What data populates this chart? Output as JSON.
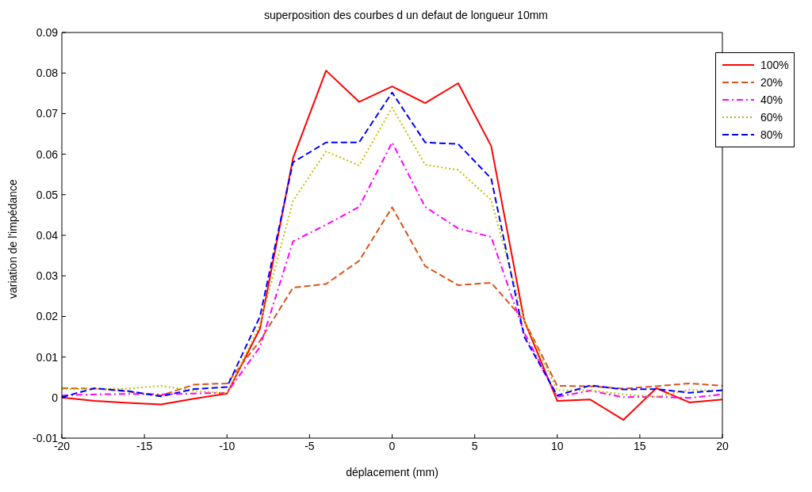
{
  "chart_data": {
    "type": "line",
    "title": "superposition des courbes d un defaut de longueur 10mm",
    "xlabel": "déplacement  (mm)",
    "ylabel": "variation de l'impédance",
    "x": [
      -20,
      -18,
      -16,
      -14,
      -12,
      -10,
      -8,
      -6,
      -4,
      -2,
      0,
      2,
      4,
      6,
      8,
      10,
      12,
      14,
      16,
      18,
      20
    ],
    "series": [
      {
        "name": "100%",
        "color": "#ff0000",
        "line_style": "solid",
        "values": [
          0,
          -0.0008,
          -0.0013,
          -0.0017,
          -0.0003,
          0.001,
          0.017,
          0.059,
          0.0806,
          0.0729,
          0.0767,
          0.0726,
          0.0775,
          0.062,
          0.019,
          -0.0008,
          -0.0005,
          -0.0055,
          0.0023,
          -0.0012,
          -0.0005
        ]
      },
      {
        "name": "20%",
        "color": "#d95319",
        "line_style": "dashed",
        "values": [
          0.0023,
          0.0022,
          0.0015,
          0.0005,
          0.0032,
          0.0035,
          0.014,
          0.0271,
          0.028,
          0.0337,
          0.0469,
          0.0324,
          0.0277,
          0.0283,
          0.019,
          0.0029,
          0.0028,
          0.0022,
          0.0028,
          0.0035,
          0.0029
        ]
      },
      {
        "name": "40%",
        "color": "#ff00ff",
        "line_style": "dashdot",
        "values": [
          0.0005,
          0.0008,
          0.0009,
          0.0008,
          0.001,
          0.0012,
          0.0125,
          0.0385,
          0.0426,
          0.047,
          0.0629,
          0.047,
          0.0417,
          0.0396,
          0.016,
          0.0002,
          0.0017,
          0.0001,
          0.0002,
          -0.0001,
          0.0008
        ]
      },
      {
        "name": "60%",
        "color": "#bfbf00",
        "line_style": "dotted",
        "values": [
          0.0021,
          0.0021,
          0.0022,
          0.0029,
          0.0017,
          0.0011,
          0.018,
          0.0485,
          0.0607,
          0.0572,
          0.0715,
          0.0574,
          0.0561,
          0.0487,
          0.019,
          0.0018,
          0.0018,
          0.0008,
          0.0002,
          0.0019,
          0.0017
        ]
      },
      {
        "name": "80%",
        "color": "#0000ff",
        "line_style": "dashed",
        "values": [
          0.0001,
          0.0023,
          0.0016,
          0.0003,
          0.0021,
          0.0026,
          0.02,
          0.058,
          0.0629,
          0.0629,
          0.0752,
          0.0629,
          0.0625,
          0.054,
          0.015,
          0.0005,
          0.003,
          0.002,
          0.0021,
          0.0012,
          0.0018
        ]
      }
    ],
    "xlim": [
      -20,
      20
    ],
    "xticks": [
      -20,
      -15,
      -10,
      -5,
      0,
      5,
      10,
      15,
      20
    ],
    "ylim": [
      -0.01,
      0.09
    ],
    "yticks": [
      -0.01,
      0,
      0.01,
      0.02,
      0.03,
      0.04,
      0.05,
      0.06,
      0.07,
      0.08,
      0.09
    ],
    "grid": false,
    "legend": "top right",
    "marker": "none"
  }
}
